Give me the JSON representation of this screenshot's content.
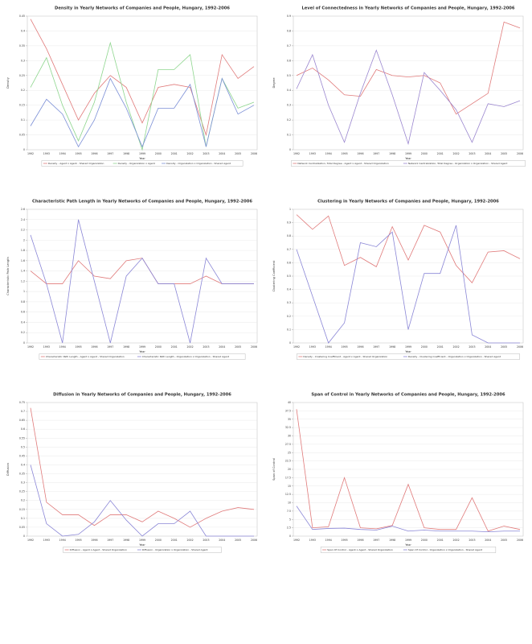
{
  "chart_data": [
    {
      "type": "line",
      "title": "Density in Yearly Networks of Companies and People, Hungary, 1992-2006",
      "x_label": "Year",
      "y_label": "Density",
      "categories": [
        "1992",
        "1993",
        "1994",
        "1995",
        "1996",
        "1997",
        "1998",
        "1999",
        "2000",
        "2001",
        "2002",
        "2003",
        "2004",
        "2005",
        "2006"
      ],
      "ylim": [
        0,
        0.45
      ],
      "yticks": [
        0,
        0.05,
        0.1,
        0.15,
        0.2,
        0.25,
        0.3,
        0.35,
        0.4,
        0.45
      ],
      "grid": true,
      "series": [
        {
          "name": "Density - Agent x Agent - Shared Organization",
          "color": "#e07a7a",
          "values": [
            0.44,
            0.34,
            0.22,
            0.1,
            0.19,
            0.25,
            0.21,
            0.09,
            0.21,
            0.22,
            0.21,
            0.05,
            0.32,
            0.24,
            0.28
          ]
        },
        {
          "name": "Density - Organization x Agent",
          "color": "#8ed68e",
          "values": [
            0.21,
            0.31,
            0.15,
            0.03,
            0.16,
            0.36,
            0.16,
            0.0,
            0.27,
            0.27,
            0.32,
            0.01,
            0.24,
            0.14,
            0.16
          ]
        },
        {
          "name": "Density - Organization x Organization - Shared Agent",
          "color": "#7a8ed6",
          "values": [
            0.08,
            0.17,
            0.12,
            0.01,
            0.1,
            0.24,
            0.14,
            0.01,
            0.14,
            0.14,
            0.22,
            0.01,
            0.24,
            0.12,
            0.15
          ]
        }
      ]
    },
    {
      "type": "line",
      "title": "Level of Connectedness in Yearly Networks of Companies and People, Hungary, 1992-2006",
      "x_label": "Year",
      "y_label": "Degree",
      "categories": [
        "1992",
        "1993",
        "1994",
        "1995",
        "1996",
        "1997",
        "1998",
        "1999",
        "2000",
        "2001",
        "2002",
        "2003",
        "2004",
        "2005",
        "2006"
      ],
      "ylim": [
        0,
        0.9
      ],
      "yticks": [
        0,
        0.1,
        0.2,
        0.3,
        0.4,
        0.5,
        0.6,
        0.7,
        0.8,
        0.9
      ],
      "grid": true,
      "series": [
        {
          "name": "Network Centralization, Total Degree - Agent x Agent - Shared Organization",
          "color": "#e07a7a",
          "values": [
            0.5,
            0.55,
            0.47,
            0.37,
            0.36,
            0.54,
            0.5,
            0.49,
            0.5,
            0.45,
            0.24,
            0.31,
            0.38,
            0.86,
            0.82
          ]
        },
        {
          "name": "Network Centralization, Total Degree - Organization x Organization - Shared Agent",
          "color": "#9a86cf",
          "values": [
            0.41,
            0.64,
            0.3,
            0.05,
            0.38,
            0.67,
            0.37,
            0.04,
            0.52,
            0.4,
            0.27,
            0.05,
            0.31,
            0.29,
            0.33
          ]
        }
      ]
    },
    {
      "type": "line",
      "title": "Characteristic Path Length in Yearly Networks of Companies and People, Hungary, 1992-2006",
      "x_label": "Year",
      "y_label": "Characteristic Path Length",
      "categories": [
        "1992",
        "1993",
        "1994",
        "1995",
        "1996",
        "1997",
        "1998",
        "1999",
        "2000",
        "2001",
        "2002",
        "2003",
        "2004",
        "2005",
        "2006"
      ],
      "ylim": [
        0,
        2.6
      ],
      "yticks": [
        0,
        0.2,
        0.4,
        0.6,
        0.8,
        1,
        1.2,
        1.4,
        1.6,
        1.8,
        2,
        2.2,
        2.4,
        2.6
      ],
      "grid": true,
      "series": [
        {
          "name": "Characteristic Path Length - Agent x Agent - Shared Organization",
          "color": "#e07a7a",
          "values": [
            1.4,
            1.15,
            1.15,
            1.6,
            1.3,
            1.25,
            1.6,
            1.65,
            1.15,
            1.15,
            1.15,
            1.3,
            1.15,
            1.15,
            1.15
          ]
        },
        {
          "name": "Characteristic Path Length - Organization x Organization - Shared Agent",
          "color": "#8a86d6",
          "values": [
            2.1,
            1.15,
            0,
            2.4,
            1.2,
            0,
            1.3,
            1.65,
            1.15,
            1.15,
            0,
            1.65,
            1.15,
            1.15,
            1.15
          ]
        }
      ]
    },
    {
      "type": "line",
      "title": "Clustering in Yearly Networks of Companies and People, Hungary, 1992-2006",
      "x_label": "Year",
      "y_label": "Clustering Coefficient",
      "categories": [
        "1992",
        "1993",
        "1994",
        "1995",
        "1996",
        "1997",
        "1998",
        "1999",
        "2000",
        "2001",
        "2002",
        "2003",
        "2004",
        "2005",
        "2006"
      ],
      "ylim": [
        0,
        1
      ],
      "yticks": [
        0,
        0.1,
        0.2,
        0.3,
        0.4,
        0.5,
        0.6,
        0.7,
        0.8,
        0.9,
        1
      ],
      "grid": true,
      "series": [
        {
          "name": "Density - Clustering Coefficient - Agent x Agent - Shared Organization",
          "color": "#e07a7a",
          "values": [
            0.96,
            0.85,
            0.95,
            0.58,
            0.64,
            0.57,
            0.87,
            0.62,
            0.88,
            0.83,
            0.58,
            0.45,
            0.68,
            0.69,
            0.63
          ]
        },
        {
          "name": "Density - Clustering Coefficient - Organization x Organization - Shared Agent",
          "color": "#8a86d6",
          "values": [
            0.7,
            0.35,
            0.0,
            0.15,
            0.75,
            0.72,
            0.83,
            0.1,
            0.52,
            0.52,
            0.88,
            0.06,
            0.0,
            0.0,
            0.0
          ]
        }
      ]
    },
    {
      "type": "line",
      "title": "Diffusion in Yearly Networks of Companies and People, Hungary, 1992-2006",
      "x_label": "Year",
      "y_label": "Diffusion",
      "categories": [
        "1992",
        "1993",
        "1994",
        "1995",
        "1996",
        "1997",
        "1998",
        "1999",
        "2000",
        "2001",
        "2002",
        "2003",
        "2004",
        "2005",
        "2006"
      ],
      "ylim": [
        0,
        0.75
      ],
      "yticks": [
        0,
        0.05,
        0.1,
        0.15,
        0.2,
        0.25,
        0.3,
        0.35,
        0.4,
        0.45,
        0.5,
        0.55,
        0.6,
        0.65,
        0.7,
        0.75
      ],
      "grid": true,
      "series": [
        {
          "name": "Diffusion - Agent x Agent - Shared Organization",
          "color": "#e07a7a",
          "values": [
            0.72,
            0.19,
            0.12,
            0.12,
            0.06,
            0.12,
            0.12,
            0.08,
            0.14,
            0.1,
            0.05,
            0.1,
            0.14,
            0.16,
            0.15
          ]
        },
        {
          "name": "Diffusion - Organization x Organization - Shared Agent",
          "color": "#8a86d6",
          "values": [
            0.4,
            0.07,
            0.0,
            0.01,
            0.08,
            0.2,
            0.09,
            0.0,
            0.07,
            0.07,
            0.14,
            0.0,
            0.0,
            0.0,
            0.0
          ]
        }
      ]
    },
    {
      "type": "line",
      "title": "Span of Control in Yearly Networks of Companies and People, Hungary, 1992-2006",
      "x_label": "Year",
      "y_label": "Span of Control",
      "categories": [
        "1992",
        "1993",
        "1994",
        "1995",
        "1996",
        "1997",
        "1998",
        "1999",
        "2000",
        "2001",
        "2002",
        "2003",
        "2004",
        "2005",
        "2006"
      ],
      "ylim": [
        0,
        40
      ],
      "yticks": [
        0,
        2.5,
        5,
        7.5,
        10,
        12.5,
        15,
        17.5,
        20,
        22.5,
        25,
        27.5,
        30,
        32.5,
        35,
        37.5,
        40
      ],
      "grid": true,
      "series": [
        {
          "name": "Span Of Control - Agent x Agent - Shared Organization",
          "color": "#e07a7a",
          "values": [
            38,
            2.5,
            2.8,
            17.5,
            2.5,
            2.2,
            3.2,
            15.5,
            2.5,
            2,
            2,
            11.5,
            1.5,
            3,
            2
          ]
        },
        {
          "name": "Span Of Control - Organization x Organization - Shared Agent",
          "color": "#8a86d6",
          "values": [
            9,
            2,
            2.3,
            2.4,
            2,
            1.8,
            3,
            1.5,
            1.8,
            1.5,
            1.5,
            1.5,
            1.3,
            1.5,
            1.5
          ]
        }
      ]
    }
  ]
}
